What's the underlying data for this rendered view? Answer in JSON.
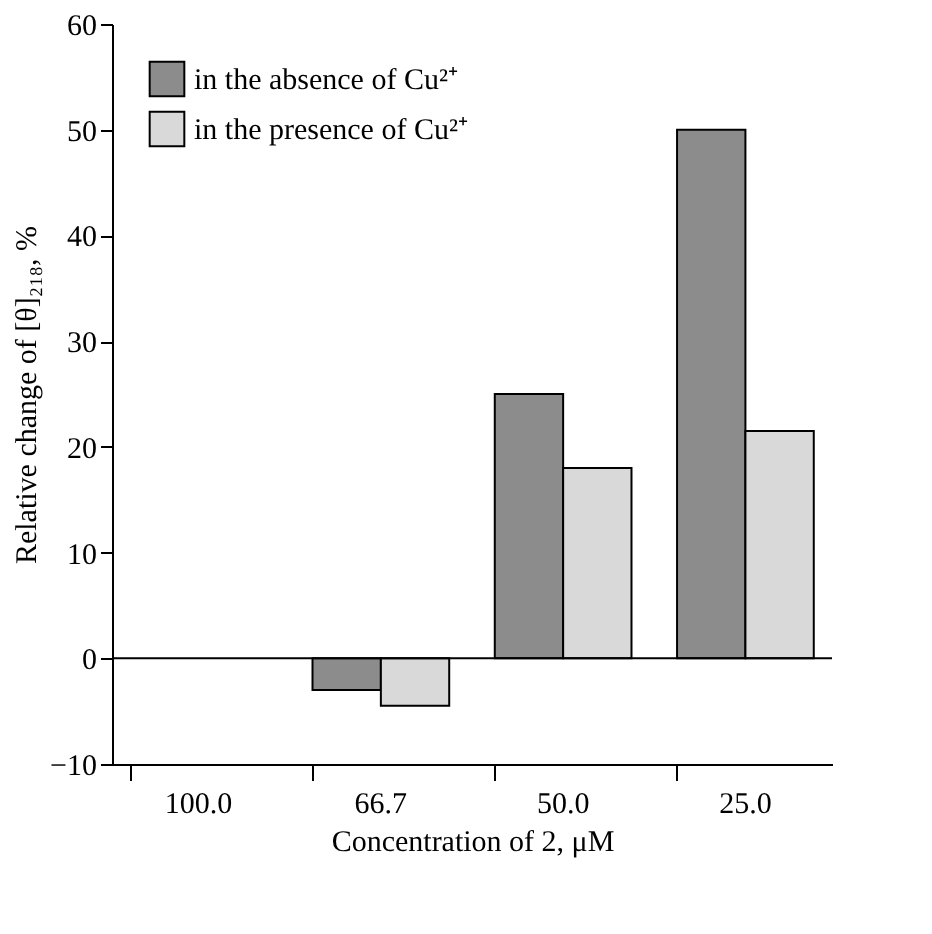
{
  "chart_data": {
    "type": "bar",
    "xlabel": "Concentration of 2, μM",
    "ylabel": "Relative change of [θ]₂₁₈, %",
    "categories": [
      "100.0",
      "66.7",
      "50.0",
      "25.0"
    ],
    "series": [
      {
        "name": "in the absence of Cu²⁺",
        "color": "#8c8c8c",
        "values": [
          null,
          -3,
          25,
          50
        ]
      },
      {
        "name": "in the presence of Cu²⁺",
        "color": "#d9d9d9",
        "values": [
          null,
          -4.5,
          18,
          21.5
        ]
      }
    ],
    "ylim": [
      -10,
      60
    ],
    "yticks": [
      -10,
      0,
      10,
      20,
      30,
      40,
      50,
      60
    ],
    "ref_lines": [
      {
        "axis": "y",
        "value": 0
      }
    ],
    "grid": false,
    "legend": "top left"
  }
}
